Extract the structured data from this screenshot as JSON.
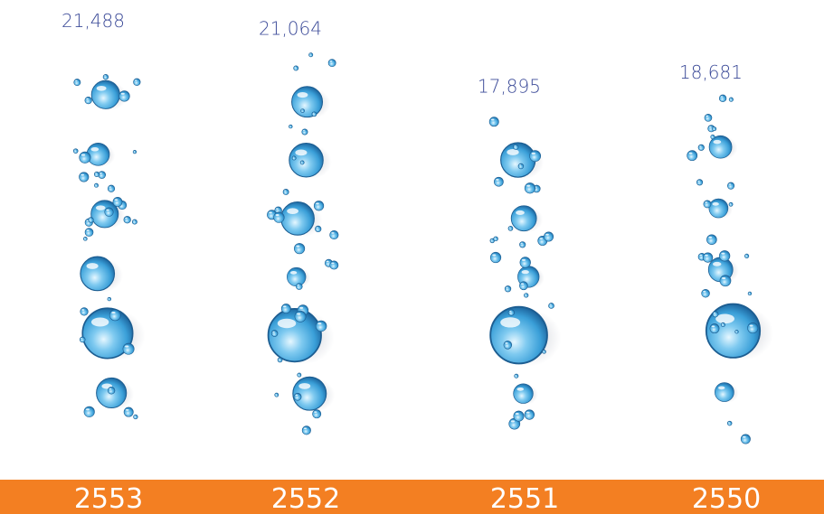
{
  "chart_data": {
    "type": "bar",
    "categories": [
      "2553",
      "2552",
      "2551",
      "2550"
    ],
    "values": [
      21488,
      21064,
      17895,
      18681
    ],
    "value_labels": [
      "21,488",
      "21,064",
      "17,895",
      "18,681"
    ],
    "title": "",
    "xlabel": "",
    "ylabel": "",
    "mark_style": "water-bubble columns",
    "colors": {
      "band": "#f37f22",
      "year_text": "#ffffff",
      "value_text": "#3b4a98",
      "bubble": "#3a9fd8"
    }
  }
}
